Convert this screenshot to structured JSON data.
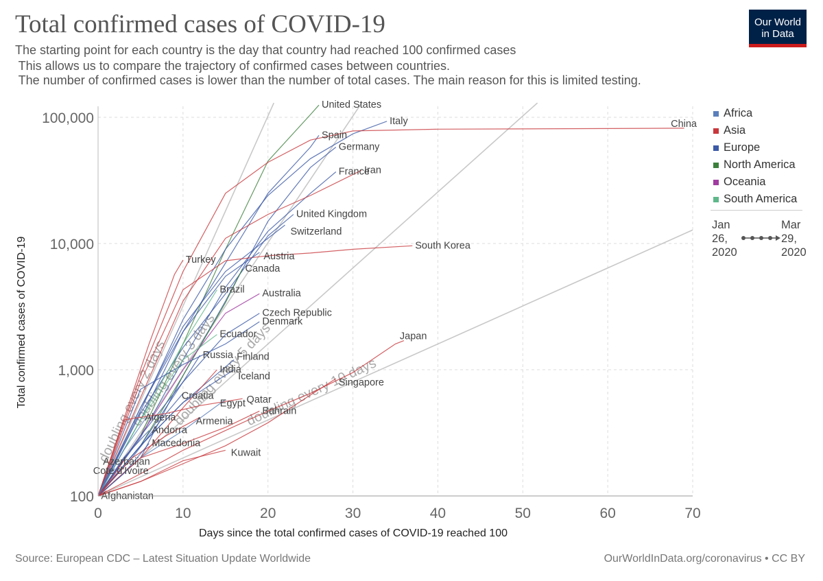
{
  "header": {
    "title": "Total confirmed cases of COVID-19",
    "subtitle_lines": [
      "The starting point for each country is the day that country had reached 100 confirmed cases",
      " This allows us to compare the trajectory of confirmed cases between countries.",
      " The number of confirmed cases is lower than the number of total cases. The main reason for this is limited testing."
    ],
    "logo_line1": "Our World",
    "logo_line2": "in Data"
  },
  "footer": {
    "source": "Source: European CDC – Latest Situation Update Worldwide",
    "credit": "OurWorldInData.org/coronavirus • CC BY"
  },
  "legend": {
    "items": [
      {
        "label": "Africa",
        "color": "#5b7fba"
      },
      {
        "label": "Asia",
        "color": "#c8383c"
      },
      {
        "label": "Europe",
        "color": "#3c5aa6"
      },
      {
        "label": "North America",
        "color": "#3c7f3c"
      },
      {
        "label": "Oceania",
        "color": "#a03ca0"
      },
      {
        "label": "South America",
        "color": "#5fb78a"
      }
    ],
    "time_start": "Jan\n26,\n2020",
    "time_end": "Mar\n29,\n2020"
  },
  "chart_data": {
    "type": "line",
    "xlabel": "Days since the total confirmed cases of COVID-19 reached 100",
    "ylabel": "Total confirmed cases of COVID-19",
    "xlim": [
      0,
      70
    ],
    "ylim": [
      100,
      130000
    ],
    "yscale": "log",
    "xticks": [
      "0",
      "10",
      "20",
      "30",
      "40",
      "50",
      "60",
      "70"
    ],
    "yticks": [
      {
        "value": 100,
        "label": "100"
      },
      {
        "value": 1000,
        "label": "1,000"
      },
      {
        "value": 10000,
        "label": "10,000"
      },
      {
        "value": 100000,
        "label": "100,000"
      }
    ],
    "grid": true,
    "legend_position": "right",
    "reference_lines": [
      {
        "doubling_days": 2,
        "label": "doubling every 2 days"
      },
      {
        "doubling_days": 3,
        "label": "doubling every 3 days"
      },
      {
        "doubling_days": 5,
        "label": "doubling every 5 days"
      },
      {
        "doubling_days": 10,
        "label": "doubling every 10 days"
      }
    ],
    "series": [
      {
        "name": "United States",
        "continent": "North America",
        "x": [
          0,
          5,
          10,
          15,
          20,
          25,
          26
        ],
        "y": [
          100,
          300,
          1600,
          9000,
          45000,
          105000,
          125000
        ]
      },
      {
        "name": "Italy",
        "continent": "Europe",
        "x": [
          0,
          5,
          10,
          15,
          20,
          25,
          30,
          34
        ],
        "y": [
          100,
          470,
          2500,
          9000,
          24000,
          47000,
          74000,
          93000
        ]
      },
      {
        "name": "Spain",
        "continent": "Europe",
        "x": [
          0,
          5,
          10,
          15,
          20,
          25,
          26
        ],
        "y": [
          100,
          400,
          2000,
          7000,
          25000,
          58000,
          72000
        ]
      },
      {
        "name": "China",
        "continent": "Asia",
        "x": [
          0,
          5,
          10,
          15,
          20,
          25,
          30,
          40,
          50,
          60,
          69
        ],
        "y": [
          100,
          900,
          6000,
          25000,
          44000,
          66000,
          78000,
          80500,
          80900,
          81400,
          82000
        ]
      },
      {
        "name": "Germany",
        "continent": "Europe",
        "x": [
          0,
          5,
          10,
          15,
          20,
          25,
          28
        ],
        "y": [
          100,
          200,
          900,
          3500,
          15000,
          40000,
          58000
        ]
      },
      {
        "name": "France",
        "continent": "Europe",
        "x": [
          0,
          5,
          10,
          15,
          20,
          25,
          28
        ],
        "y": [
          100,
          290,
          1200,
          4500,
          12500,
          25000,
          37000
        ]
      },
      {
        "name": "Iran",
        "continent": "Asia",
        "x": [
          0,
          5,
          10,
          15,
          20,
          25,
          31
        ],
        "y": [
          100,
          600,
          3500,
          11000,
          17000,
          24000,
          38000
        ]
      },
      {
        "name": "United Kingdom",
        "continent": "Europe",
        "x": [
          0,
          5,
          10,
          15,
          20,
          23
        ],
        "y": [
          100,
          450,
          1500,
          4000,
          11500,
          17000
        ]
      },
      {
        "name": "Switzerland",
        "continent": "Europe",
        "x": [
          0,
          5,
          10,
          15,
          20,
          22
        ],
        "y": [
          100,
          500,
          2200,
          6000,
          11000,
          14000
        ]
      },
      {
        "name": "South Korea",
        "continent": "Asia",
        "x": [
          0,
          5,
          10,
          15,
          20,
          25,
          30,
          37
        ],
        "y": [
          100,
          800,
          4300,
          7300,
          8000,
          8400,
          9000,
          9600
        ]
      },
      {
        "name": "Austria",
        "continent": "Europe",
        "x": [
          0,
          5,
          10,
          15,
          19
        ],
        "y": [
          100,
          500,
          2000,
          5500,
          8500
        ]
      },
      {
        "name": "Turkey",
        "continent": "Asia",
        "x": [
          0,
          3,
          6,
          9,
          10
        ],
        "y": [
          100,
          400,
          1600,
          5700,
          7400
        ]
      },
      {
        "name": "Canada",
        "continent": "North America",
        "x": [
          0,
          5,
          10,
          15,
          17
        ],
        "y": [
          100,
          250,
          900,
          3400,
          6300
        ]
      },
      {
        "name": "Brazil",
        "continent": "South America",
        "x": [
          0,
          5,
          10,
          14
        ],
        "y": [
          100,
          400,
          1600,
          4300
        ]
      },
      {
        "name": "Australia",
        "continent": "Oceania",
        "x": [
          0,
          5,
          10,
          15,
          19
        ],
        "y": [
          100,
          300,
          1000,
          2800,
          4000
        ]
      },
      {
        "name": "Czech Republic",
        "continent": "Europe",
        "x": [
          0,
          5,
          10,
          15,
          19
        ],
        "y": [
          100,
          300,
          800,
          1900,
          2800
        ]
      },
      {
        "name": "Denmark",
        "continent": "Europe",
        "x": [
          0,
          5,
          10,
          15,
          19
        ],
        "y": [
          100,
          700,
          1100,
          1600,
          2400
        ]
      },
      {
        "name": "Ecuador",
        "continent": "South America",
        "x": [
          0,
          5,
          10,
          14
        ],
        "y": [
          100,
          400,
          1200,
          1900
        ]
      },
      {
        "name": "Russia",
        "continent": "Europe",
        "x": [
          0,
          5,
          10,
          12
        ],
        "y": [
          100,
          250,
          800,
          1300
        ]
      },
      {
        "name": "Finland",
        "continent": "Europe",
        "x": [
          0,
          5,
          10,
          16
        ],
        "y": [
          100,
          250,
          550,
          1200
        ]
      },
      {
        "name": "India",
        "continent": "Asia",
        "x": [
          0,
          5,
          10,
          14
        ],
        "y": [
          100,
          200,
          500,
          1000
        ]
      },
      {
        "name": "Iceland",
        "continent": "Europe",
        "x": [
          0,
          5,
          10,
          16
        ],
        "y": [
          100,
          250,
          550,
          1000
        ]
      },
      {
        "name": "Japan",
        "continent": "Asia",
        "x": [
          0,
          5,
          10,
          15,
          20,
          25,
          30,
          35,
          36
        ],
        "y": [
          100,
          150,
          230,
          330,
          470,
          650,
          950,
          1600,
          1700
        ]
      },
      {
        "name": "Singapore",
        "continent": "Asia",
        "x": [
          0,
          5,
          10,
          15,
          20,
          25,
          28
        ],
        "y": [
          100,
          130,
          180,
          250,
          380,
          630,
          850
        ]
      },
      {
        "name": "Croatia",
        "continent": "Europe",
        "x": [
          0,
          4,
          8,
          10
        ],
        "y": [
          100,
          200,
          450,
          650
        ]
      },
      {
        "name": "Qatar",
        "continent": "Asia",
        "x": [
          0,
          3,
          8,
          12,
          17
        ],
        "y": [
          100,
          400,
          450,
          520,
          590
        ]
      },
      {
        "name": "Egypt",
        "continent": "Africa",
        "x": [
          0,
          5,
          10,
          15
        ],
        "y": [
          100,
          200,
          330,
          580
        ]
      },
      {
        "name": "Algeria",
        "continent": "Africa",
        "x": [
          0,
          3,
          6
        ],
        "y": [
          100,
          230,
          450
        ]
      },
      {
        "name": "Armenia",
        "continent": "Asia",
        "x": [
          0,
          4,
          8,
          12
        ],
        "y": [
          100,
          200,
          300,
          420
        ]
      },
      {
        "name": "Bahrain",
        "continent": "Asia",
        "x": [
          0,
          5,
          10,
          15,
          19
        ],
        "y": [
          100,
          200,
          260,
          350,
          470
        ]
      },
      {
        "name": "Andorra",
        "continent": "Europe",
        "x": [
          0,
          3,
          6
        ],
        "y": [
          100,
          200,
          330
        ]
      },
      {
        "name": "Macedonia",
        "continent": "Europe",
        "x": [
          0,
          3,
          6
        ],
        "y": [
          100,
          150,
          260
        ]
      },
      {
        "name": "Kuwait",
        "continent": "Asia",
        "x": [
          0,
          5,
          10,
          15
        ],
        "y": [
          100,
          130,
          190,
          230
        ]
      },
      {
        "name": "Azerbaijan",
        "continent": "Asia",
        "x": [
          0,
          2,
          3
        ],
        "y": [
          100,
          150,
          190
        ]
      },
      {
        "name": "Cote d'Ivoire",
        "continent": "Africa",
        "x": [
          0,
          1,
          2
        ],
        "y": [
          100,
          140,
          165
        ]
      },
      {
        "name": "Afghanistan",
        "continent": "Asia",
        "x": [
          0,
          1
        ],
        "y": [
          100,
          110
        ]
      }
    ]
  }
}
